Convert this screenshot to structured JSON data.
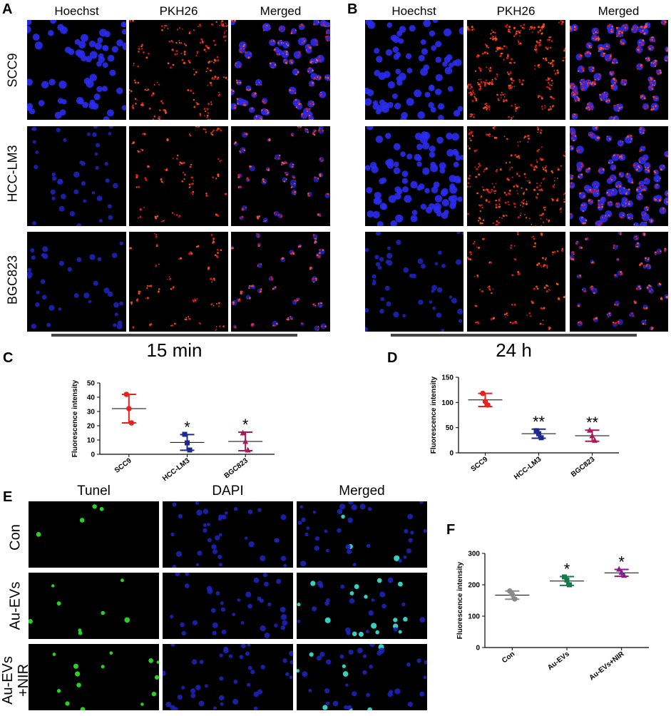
{
  "panelA": {
    "letter": "A",
    "columns": [
      "Hoechst",
      "PKH26",
      "Merged"
    ],
    "rows": [
      "SCC9",
      "HCC-LM3",
      "BGC823"
    ],
    "time": "15 min"
  },
  "panelB": {
    "letter": "B",
    "columns": [
      "Hoechst",
      "PKH26",
      "Merged"
    ],
    "time": "24 h"
  },
  "panelC": {
    "letter": "C"
  },
  "panelD": {
    "letter": "D"
  },
  "panelE": {
    "letter": "E",
    "columns": [
      "Tunel",
      "DAPI",
      "Merged"
    ],
    "rows": [
      "Con",
      "Au-EVs",
      "Au-EVs\n+NIR"
    ]
  },
  "panelF": {
    "letter": "F"
  },
  "chart_data": [
    {
      "panel": "C",
      "type": "scatter",
      "ylabel": "Fluorescence intensity",
      "ylim": [
        0,
        50
      ],
      "yticks": [
        0,
        10,
        20,
        30,
        40,
        50
      ],
      "categories": [
        "SCC9",
        "HCC-LM3",
        "BGC823"
      ],
      "points": [
        [
          42,
          32,
          22
        ],
        [
          14,
          8,
          3
        ],
        [
          15,
          9,
          3
        ]
      ],
      "mean": [
        32,
        8.3,
        9
      ],
      "sd": [
        10,
        5.5,
        6.5
      ],
      "significance": [
        "",
        "*",
        "*"
      ],
      "colors": [
        "#e8211e",
        "#1c2a8e",
        "#a8195c"
      ],
      "markers": [
        "circle",
        "square",
        "triangle"
      ]
    },
    {
      "panel": "D",
      "type": "scatter",
      "ylabel": "Fluorescence intensity",
      "ylim": [
        0,
        150
      ],
      "yticks": [
        0,
        50,
        100,
        150
      ],
      "categories": [
        "SCC9",
        "HCC-LM3",
        "BGC823"
      ],
      "points": [
        [
          118,
          102,
          95
        ],
        [
          44,
          38,
          30
        ],
        [
          45,
          34,
          25
        ]
      ],
      "mean": [
        105,
        38,
        34
      ],
      "sd": [
        13,
        9,
        11
      ],
      "significance": [
        "",
        "**",
        "**"
      ],
      "colors": [
        "#e8211e",
        "#1c2a8e",
        "#a8195c"
      ],
      "markers": [
        "circle",
        "square",
        "triangle"
      ]
    },
    {
      "panel": "F",
      "type": "scatter",
      "ylabel": "Fluorescence intensity",
      "ylim": [
        0,
        300
      ],
      "yticks": [
        0,
        100,
        200,
        300
      ],
      "categories": [
        "Con",
        "Au-EVs",
        "Au-EVs+NIR"
      ],
      "points": [
        [
          180,
          170,
          155
        ],
        [
          225,
          215,
          200
        ],
        [
          250,
          240,
          230
        ]
      ],
      "mean": [
        167,
        212,
        238
      ],
      "sd": [
        13,
        14,
        11
      ],
      "significance": [
        "",
        "*",
        "*"
      ],
      "colors": [
        "#8a8a8a",
        "#137a4c",
        "#8a1a8e"
      ],
      "markers": [
        "circle",
        "square",
        "triangle"
      ]
    }
  ]
}
